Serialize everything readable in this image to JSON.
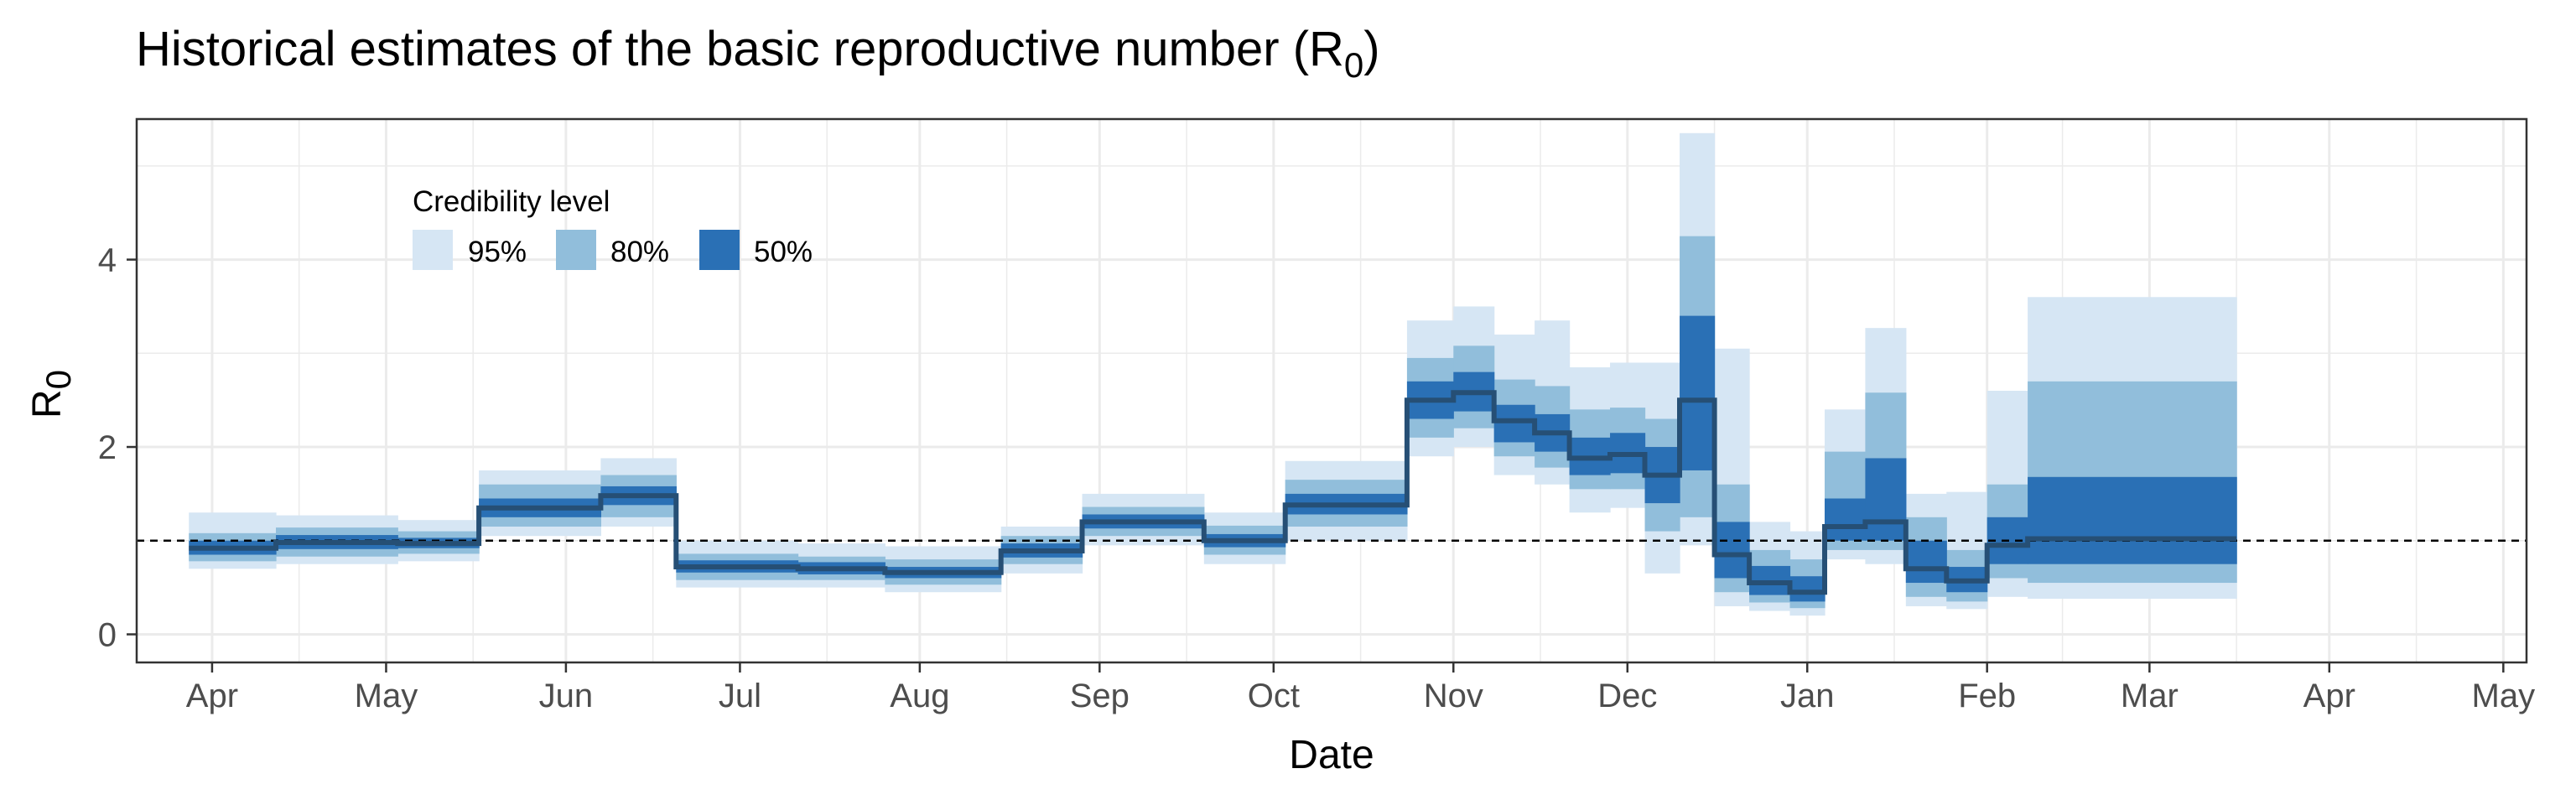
{
  "chart_data": {
    "type": "area",
    "title": "Historical estimates of the basic reproductive number (R",
    "title_subscript": "0",
    "title_suffix": ")",
    "xlabel": "Date",
    "ylabel": "R",
    "ylabel_subscript": "0",
    "x_axis_type": "date",
    "xlim": [
      "2022-03-19",
      "2023-05-05"
    ],
    "ylim": [
      -0.3,
      5.5
    ],
    "x_ticks": [
      {
        "date": "2022-04-01",
        "label": "Apr"
      },
      {
        "date": "2022-05-01",
        "label": "May"
      },
      {
        "date": "2022-06-01",
        "label": "Jun"
      },
      {
        "date": "2022-07-01",
        "label": "Jul"
      },
      {
        "date": "2022-08-01",
        "label": "Aug"
      },
      {
        "date": "2022-09-01",
        "label": "Sep"
      },
      {
        "date": "2022-10-01",
        "label": "Oct"
      },
      {
        "date": "2022-11-01",
        "label": "Nov"
      },
      {
        "date": "2022-12-01",
        "label": "Dec"
      },
      {
        "date": "2023-01-01",
        "label": "Jan"
      },
      {
        "date": "2023-02-01",
        "label": "Feb"
      },
      {
        "date": "2023-03-01",
        "label": "Mar"
      },
      {
        "date": "2023-04-01",
        "label": "Apr"
      },
      {
        "date": "2023-05-01",
        "label": "May"
      }
    ],
    "x_minor_ticks": [
      "2022-04-16",
      "2022-05-16",
      "2022-06-16",
      "2022-07-16",
      "2022-08-16",
      "2022-09-16",
      "2022-10-16",
      "2022-11-16",
      "2022-12-16",
      "2023-01-16",
      "2023-02-14",
      "2023-03-16",
      "2023-04-16"
    ],
    "y_ticks": [
      0,
      2,
      4
    ],
    "y_minor_ticks": [
      1,
      3,
      5
    ],
    "reference_line": {
      "y": 1,
      "style": "dashed"
    },
    "grid": true,
    "legend": {
      "title": "Credibility level",
      "placement": "top-left, inside plot",
      "entries": [
        {
          "label": "95%",
          "color": "#d6e6f4"
        },
        {
          "label": "80%",
          "color": "#91bedb"
        },
        {
          "label": "50%",
          "color": "#2a70b5"
        }
      ]
    },
    "colors": {
      "median_line": "#264f75",
      "reference_line": "#000000",
      "grid": "#ebebeb",
      "panel_border": "#333333"
    },
    "intervals": [
      {
        "start": "2022-03-28",
        "end": "2022-04-12",
        "median": 0.92,
        "q2_5": 0.7,
        "q10": 0.78,
        "q25": 0.85,
        "q75": 1.0,
        "q90": 1.08,
        "q97_5": 1.3
      },
      {
        "start": "2022-04-12",
        "end": "2022-05-03",
        "median": 0.98,
        "q2_5": 0.75,
        "q10": 0.83,
        "q25": 0.91,
        "q75": 1.06,
        "q90": 1.14,
        "q97_5": 1.27
      },
      {
        "start": "2022-05-03",
        "end": "2022-05-17",
        "median": 0.97,
        "q2_5": 0.78,
        "q10": 0.86,
        "q25": 0.92,
        "q75": 1.03,
        "q90": 1.1,
        "q97_5": 1.22
      },
      {
        "start": "2022-05-17",
        "end": "2022-06-07",
        "median": 1.35,
        "q2_5": 1.05,
        "q10": 1.15,
        "q25": 1.25,
        "q75": 1.45,
        "q90": 1.6,
        "q97_5": 1.75
      },
      {
        "start": "2022-06-07",
        "end": "2022-06-20",
        "median": 1.48,
        "q2_5": 1.15,
        "q10": 1.25,
        "q25": 1.38,
        "q75": 1.58,
        "q90": 1.7,
        "q97_5": 1.88
      },
      {
        "start": "2022-06-20",
        "end": "2022-07-11",
        "median": 0.72,
        "q2_5": 0.5,
        "q10": 0.58,
        "q25": 0.66,
        "q75": 0.79,
        "q90": 0.86,
        "q97_5": 1.0
      },
      {
        "start": "2022-07-11",
        "end": "2022-07-26",
        "median": 0.7,
        "q2_5": 0.5,
        "q10": 0.58,
        "q25": 0.64,
        "q75": 0.77,
        "q90": 0.83,
        "q97_5": 0.97
      },
      {
        "start": "2022-07-26",
        "end": "2022-08-15",
        "median": 0.66,
        "q2_5": 0.45,
        "q10": 0.53,
        "q25": 0.6,
        "q75": 0.72,
        "q90": 0.8,
        "q97_5": 0.94
      },
      {
        "start": "2022-08-15",
        "end": "2022-08-29",
        "median": 0.89,
        "q2_5": 0.65,
        "q10": 0.75,
        "q25": 0.82,
        "q75": 0.97,
        "q90": 1.05,
        "q97_5": 1.15
      },
      {
        "start": "2022-08-29",
        "end": "2022-09-19",
        "median": 1.2,
        "q2_5": 0.95,
        "q10": 1.05,
        "q25": 1.13,
        "q75": 1.28,
        "q90": 1.36,
        "q97_5": 1.5
      },
      {
        "start": "2022-09-19",
        "end": "2022-10-03",
        "median": 1.0,
        "q2_5": 0.75,
        "q10": 0.85,
        "q25": 0.93,
        "q75": 1.07,
        "q90": 1.16,
        "q97_5": 1.3
      },
      {
        "start": "2022-10-03",
        "end": "2022-10-24",
        "median": 1.38,
        "q2_5": 1.0,
        "q10": 1.15,
        "q25": 1.28,
        "q75": 1.5,
        "q90": 1.65,
        "q97_5": 1.85
      },
      {
        "start": "2022-10-24",
        "end": "2022-11-01",
        "median": 2.5,
        "q2_5": 1.9,
        "q10": 2.1,
        "q25": 2.3,
        "q75": 2.7,
        "q90": 2.95,
        "q97_5": 3.35
      },
      {
        "start": "2022-11-01",
        "end": "2022-11-08",
        "median": 2.58,
        "q2_5": 2.0,
        "q10": 2.2,
        "q25": 2.38,
        "q75": 2.8,
        "q90": 3.08,
        "q97_5": 3.5
      },
      {
        "start": "2022-11-08",
        "end": "2022-11-15",
        "median": 2.28,
        "q2_5": 1.7,
        "q10": 1.9,
        "q25": 2.05,
        "q75": 2.45,
        "q90": 2.72,
        "q97_5": 3.2
      },
      {
        "start": "2022-11-15",
        "end": "2022-11-21",
        "median": 2.15,
        "q2_5": 1.6,
        "q10": 1.78,
        "q25": 1.95,
        "q75": 2.35,
        "q90": 2.65,
        "q97_5": 3.35
      },
      {
        "start": "2022-11-21",
        "end": "2022-11-28",
        "median": 1.88,
        "q2_5": 1.3,
        "q10": 1.55,
        "q25": 1.7,
        "q75": 2.1,
        "q90": 2.4,
        "q97_5": 2.85
      },
      {
        "start": "2022-11-28",
        "end": "2022-12-04",
        "median": 1.92,
        "q2_5": 1.35,
        "q10": 1.55,
        "q25": 1.72,
        "q75": 2.15,
        "q90": 2.42,
        "q97_5": 2.9
      },
      {
        "start": "2022-12-04",
        "end": "2022-12-10",
        "median": 1.7,
        "q2_5": 0.65,
        "q10": 1.1,
        "q25": 1.4,
        "q75": 2.0,
        "q90": 2.3,
        "q97_5": 2.9
      },
      {
        "start": "2022-12-10",
        "end": "2022-12-16",
        "median": 2.5,
        "q2_5": 0.95,
        "q10": 1.25,
        "q25": 1.75,
        "q75": 3.4,
        "q90": 4.25,
        "q97_5": 5.35
      },
      {
        "start": "2022-12-16",
        "end": "2022-12-22",
        "median": 0.85,
        "q2_5": 0.3,
        "q10": 0.45,
        "q25": 0.6,
        "q75": 1.2,
        "q90": 1.6,
        "q97_5": 3.05
      },
      {
        "start": "2022-12-22",
        "end": "2022-12-29",
        "median": 0.55,
        "q2_5": 0.25,
        "q10": 0.34,
        "q25": 0.42,
        "q75": 0.73,
        "q90": 0.9,
        "q97_5": 1.2
      },
      {
        "start": "2022-12-29",
        "end": "2023-01-04",
        "median": 0.45,
        "q2_5": 0.2,
        "q10": 0.28,
        "q25": 0.35,
        "q75": 0.62,
        "q90": 0.8,
        "q97_5": 1.1
      },
      {
        "start": "2023-01-04",
        "end": "2023-01-11",
        "median": 1.15,
        "q2_5": 0.8,
        "q10": 0.9,
        "q25": 1.0,
        "q75": 1.45,
        "q90": 1.95,
        "q97_5": 2.4
      },
      {
        "start": "2023-01-11",
        "end": "2023-01-18",
        "median": 1.2,
        "q2_5": 0.75,
        "q10": 0.9,
        "q25": 1.0,
        "q75": 1.88,
        "q90": 2.58,
        "q97_5": 3.27
      },
      {
        "start": "2023-01-18",
        "end": "2023-01-25",
        "median": 0.7,
        "q2_5": 0.3,
        "q10": 0.4,
        "q25": 0.55,
        "q75": 1.0,
        "q90": 1.25,
        "q97_5": 1.5
      },
      {
        "start": "2023-01-25",
        "end": "2023-02-01",
        "median": 0.57,
        "q2_5": 0.27,
        "q10": 0.35,
        "q25": 0.45,
        "q75": 0.72,
        "q90": 0.9,
        "q97_5": 1.52
      },
      {
        "start": "2023-02-01",
        "end": "2023-02-08",
        "median": 0.95,
        "q2_5": 0.4,
        "q10": 0.6,
        "q25": 0.75,
        "q75": 1.25,
        "q90": 1.6,
        "q97_5": 2.6
      },
      {
        "start": "2023-02-08",
        "end": "2023-03-16",
        "median": 1.02,
        "q2_5": 0.38,
        "q10": 0.55,
        "q25": 0.75,
        "q75": 1.68,
        "q90": 2.7,
        "q97_5": 3.6
      }
    ]
  }
}
